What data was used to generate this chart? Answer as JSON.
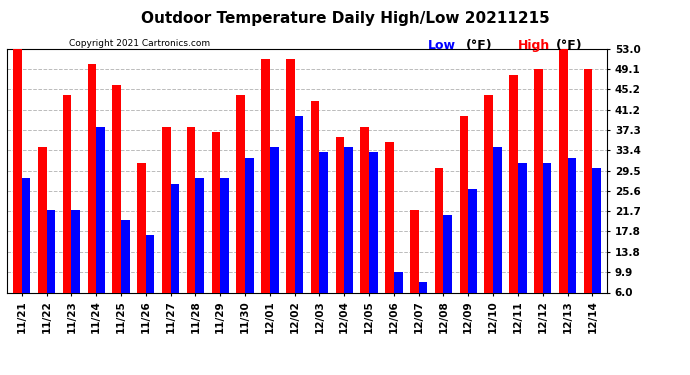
{
  "title": "Outdoor Temperature Daily High/Low 20211215",
  "copyright_text": "Copyright 2021 Cartronics.com",
  "legend_low_label": "Low",
  "legend_high_label": "High",
  "legend_unit": "(°F)",
  "dates": [
    "11/21",
    "11/22",
    "11/23",
    "11/24",
    "11/25",
    "11/26",
    "11/27",
    "11/28",
    "11/29",
    "11/30",
    "12/01",
    "12/02",
    "12/03",
    "12/04",
    "12/05",
    "12/06",
    "12/07",
    "12/08",
    "12/09",
    "12/10",
    "12/11",
    "12/12",
    "12/13",
    "12/14"
  ],
  "highs": [
    53.0,
    34.0,
    44.0,
    50.0,
    46.0,
    31.0,
    38.0,
    38.0,
    37.0,
    44.0,
    51.0,
    51.0,
    43.0,
    36.0,
    38.0,
    35.0,
    22.0,
    30.0,
    40.0,
    44.0,
    48.0,
    49.0,
    53.0,
    49.0
  ],
  "lows": [
    28.0,
    22.0,
    22.0,
    38.0,
    20.0,
    17.0,
    27.0,
    28.0,
    28.0,
    32.0,
    34.0,
    40.0,
    33.0,
    34.0,
    33.0,
    10.0,
    8.0,
    21.0,
    26.0,
    34.0,
    31.0,
    31.0,
    32.0,
    30.0
  ],
  "ylim_min": 6.0,
  "ylim_max": 53.0,
  "yticks": [
    6.0,
    9.9,
    13.8,
    17.8,
    21.7,
    25.6,
    29.5,
    33.4,
    37.3,
    41.2,
    45.2,
    49.1,
    53.0
  ],
  "bar_color_high": "#ff0000",
  "bar_color_low": "#0000ff",
  "background_color": "#ffffff",
  "grid_color": "#bbbbbb",
  "title_fontsize": 11,
  "tick_fontsize": 7.5,
  "copyright_fontsize": 6.5,
  "legend_fontsize": 9,
  "bar_width": 0.35
}
